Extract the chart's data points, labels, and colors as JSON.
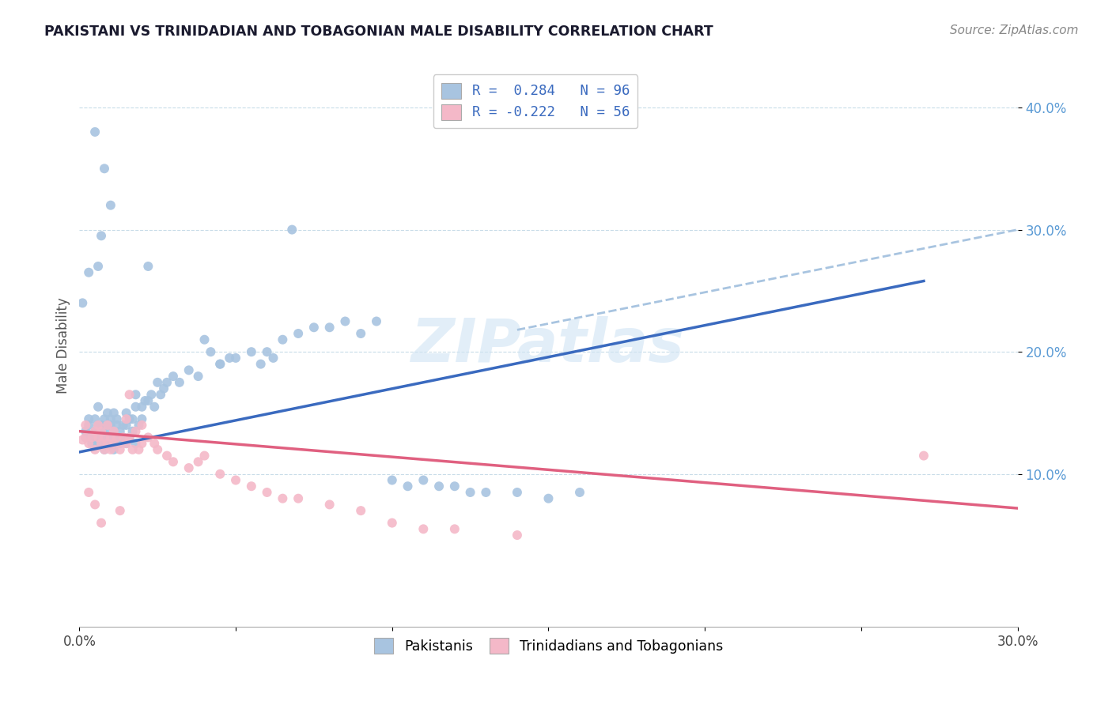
{
  "title": "PAKISTANI VS TRINIDADIAN AND TOBAGONIAN MALE DISABILITY CORRELATION CHART",
  "source": "Source: ZipAtlas.com",
  "ylabel": "Male Disability",
  "xlim": [
    0.0,
    0.3
  ],
  "ylim": [
    -0.025,
    0.435
  ],
  "ytick_vals": [
    0.1,
    0.2,
    0.3,
    0.4
  ],
  "ytick_labels": [
    "10.0%",
    "20.0%",
    "30.0%",
    "40.0%"
  ],
  "xtick_vals": [
    0.0,
    0.05,
    0.1,
    0.15,
    0.2,
    0.25,
    0.3
  ],
  "xtick_labels": [
    "0.0%",
    "",
    "",
    "",
    "",
    "",
    "30.0%"
  ],
  "blue_color": "#a8c4e0",
  "pink_color": "#f4b8c8",
  "blue_line_color": "#3a6abf",
  "pink_line_color": "#e06080",
  "dashed_line_color": "#a8c4e0",
  "watermark": "ZIPatlas",
  "blue_R": 0.284,
  "blue_N": 96,
  "pink_R": -0.222,
  "pink_N": 56,
  "blue_line_x0": 0.0,
  "blue_line_y0": 0.118,
  "blue_line_x1": 0.27,
  "blue_line_y1": 0.258,
  "pink_line_x0": 0.0,
  "pink_line_y0": 0.135,
  "pink_line_x1": 0.3,
  "pink_line_y1": 0.072,
  "dash_line_x0": 0.14,
  "dash_line_y0": 0.218,
  "dash_line_x1": 0.3,
  "dash_line_y1": 0.3,
  "pakistani_x": [
    0.001,
    0.002,
    0.002,
    0.003,
    0.003,
    0.004,
    0.004,
    0.005,
    0.005,
    0.005,
    0.006,
    0.006,
    0.006,
    0.007,
    0.007,
    0.007,
    0.008,
    0.008,
    0.008,
    0.009,
    0.009,
    0.009,
    0.01,
    0.01,
    0.01,
    0.01,
    0.011,
    0.011,
    0.011,
    0.012,
    0.012,
    0.012,
    0.013,
    0.013,
    0.014,
    0.014,
    0.015,
    0.015,
    0.015,
    0.016,
    0.016,
    0.017,
    0.017,
    0.018,
    0.018,
    0.019,
    0.02,
    0.02,
    0.021,
    0.022,
    0.023,
    0.024,
    0.025,
    0.026,
    0.027,
    0.028,
    0.03,
    0.032,
    0.035,
    0.038,
    0.04,
    0.042,
    0.045,
    0.048,
    0.05,
    0.055,
    0.058,
    0.06,
    0.062,
    0.065,
    0.07,
    0.075,
    0.08,
    0.085,
    0.09,
    0.095,
    0.1,
    0.105,
    0.11,
    0.115,
    0.12,
    0.125,
    0.13,
    0.14,
    0.15,
    0.16,
    0.045,
    0.022,
    0.018,
    0.068,
    0.008,
    0.01,
    0.007,
    0.006,
    0.005,
    0.003
  ],
  "pakistani_y": [
    0.24,
    0.13,
    0.135,
    0.14,
    0.145,
    0.13,
    0.125,
    0.135,
    0.145,
    0.125,
    0.14,
    0.13,
    0.155,
    0.13,
    0.14,
    0.125,
    0.135,
    0.145,
    0.12,
    0.14,
    0.13,
    0.15,
    0.14,
    0.13,
    0.125,
    0.145,
    0.135,
    0.15,
    0.12,
    0.14,
    0.13,
    0.145,
    0.135,
    0.125,
    0.14,
    0.13,
    0.15,
    0.14,
    0.125,
    0.145,
    0.13,
    0.145,
    0.135,
    0.155,
    0.125,
    0.14,
    0.155,
    0.145,
    0.16,
    0.16,
    0.165,
    0.155,
    0.175,
    0.165,
    0.17,
    0.175,
    0.18,
    0.175,
    0.185,
    0.18,
    0.21,
    0.2,
    0.19,
    0.195,
    0.195,
    0.2,
    0.19,
    0.2,
    0.195,
    0.21,
    0.215,
    0.22,
    0.22,
    0.225,
    0.215,
    0.225,
    0.095,
    0.09,
    0.095,
    0.09,
    0.09,
    0.085,
    0.085,
    0.085,
    0.08,
    0.085,
    0.19,
    0.27,
    0.165,
    0.3,
    0.35,
    0.32,
    0.295,
    0.27,
    0.38,
    0.265
  ],
  "trinidadian_x": [
    0.001,
    0.002,
    0.002,
    0.003,
    0.004,
    0.005,
    0.005,
    0.006,
    0.006,
    0.007,
    0.007,
    0.008,
    0.008,
    0.009,
    0.009,
    0.01,
    0.01,
    0.011,
    0.011,
    0.012,
    0.013,
    0.014,
    0.015,
    0.015,
    0.016,
    0.017,
    0.018,
    0.019,
    0.02,
    0.02,
    0.022,
    0.024,
    0.025,
    0.028,
    0.03,
    0.035,
    0.038,
    0.04,
    0.045,
    0.05,
    0.055,
    0.06,
    0.065,
    0.07,
    0.08,
    0.09,
    0.1,
    0.11,
    0.12,
    0.14,
    0.003,
    0.005,
    0.007,
    0.013,
    0.27,
    0.016
  ],
  "trinidadian_y": [
    0.128,
    0.13,
    0.14,
    0.125,
    0.13,
    0.135,
    0.12,
    0.13,
    0.14,
    0.125,
    0.135,
    0.12,
    0.13,
    0.14,
    0.125,
    0.13,
    0.12,
    0.135,
    0.125,
    0.13,
    0.12,
    0.13,
    0.145,
    0.125,
    0.13,
    0.12,
    0.135,
    0.12,
    0.14,
    0.125,
    0.13,
    0.125,
    0.12,
    0.115,
    0.11,
    0.105,
    0.11,
    0.115,
    0.1,
    0.095,
    0.09,
    0.085,
    0.08,
    0.08,
    0.075,
    0.07,
    0.06,
    0.055,
    0.055,
    0.05,
    0.085,
    0.075,
    0.06,
    0.07,
    0.115,
    0.165
  ]
}
